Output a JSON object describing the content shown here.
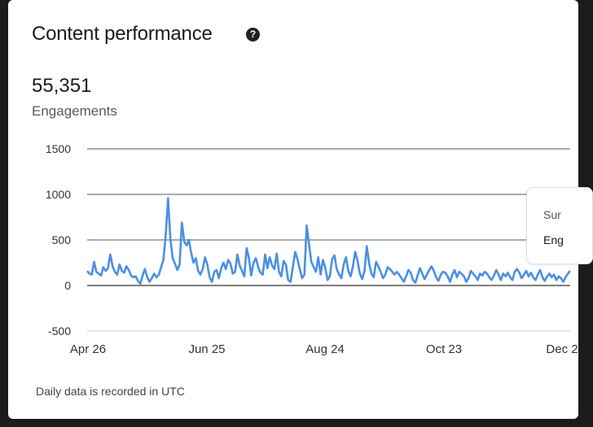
{
  "card": {
    "title": "Content performance",
    "help_icon_glyph": "?",
    "total_value": "55,351",
    "metric_label": "Engagements",
    "footnote": "Daily data is recorded in UTC"
  },
  "tooltip": {
    "date_partial": "Sur",
    "label_partial": "Eng"
  },
  "chart_data": {
    "type": "line",
    "ylim": [
      -500,
      1500
    ],
    "yticks": [
      "1500",
      "1000",
      "500",
      "0",
      "-500"
    ],
    "xticks": [
      "Apr 26",
      "Jun 25",
      "Aug 24",
      "Oct 23",
      "Dec 2"
    ],
    "series": [
      {
        "color": "#4a90e2",
        "values": [
          160,
          130,
          120,
          260,
          150,
          130,
          110,
          200,
          160,
          190,
          340,
          210,
          150,
          120,
          230,
          160,
          140,
          210,
          170,
          110,
          90,
          100,
          50,
          20,
          110,
          180,
          90,
          40,
          80,
          130,
          90,
          120,
          200,
          280,
          560,
          960,
          520,
          300,
          240,
          170,
          230,
          690,
          480,
          440,
          500,
          360,
          250,
          300,
          160,
          120,
          180,
          310,
          230,
          90,
          40,
          150,
          170,
          80,
          190,
          250,
          180,
          280,
          240,
          130,
          150,
          340,
          220,
          160,
          100,
          410,
          300,
          110,
          250,
          300,
          200,
          140,
          120,
          340,
          190,
          310,
          220,
          180,
          350,
          150,
          100,
          270,
          230,
          60,
          40,
          200,
          370,
          290,
          180,
          80,
          120,
          660,
          450,
          260,
          200,
          150,
          310,
          120,
          280,
          200,
          60,
          100,
          290,
          330,
          180,
          120,
          80,
          230,
          310,
          160,
          100,
          210,
          370,
          270,
          130,
          70,
          160,
          430,
          240,
          130,
          90,
          260,
          210,
          150,
          80,
          120,
          200,
          180,
          150,
          120,
          150,
          120,
          80,
          40,
          100,
          170,
          140,
          60,
          30,
          110,
          190,
          130,
          70,
          120,
          170,
          210,
          160,
          90,
          50,
          120,
          150,
          140,
          100,
          40,
          120,
          170,
          90,
          150,
          130,
          100,
          40,
          80,
          160,
          130,
          100,
          60,
          130,
          110,
          150,
          130,
          90,
          60,
          110,
          170,
          120,
          60,
          130,
          100,
          140,
          90,
          60,
          150,
          180,
          140,
          80,
          120,
          160,
          100,
          140,
          90,
          60,
          120,
          170,
          90,
          50,
          100,
          130,
          90,
          120,
          60,
          100,
          80,
          40,
          90,
          130,
          160
        ]
      }
    ]
  }
}
